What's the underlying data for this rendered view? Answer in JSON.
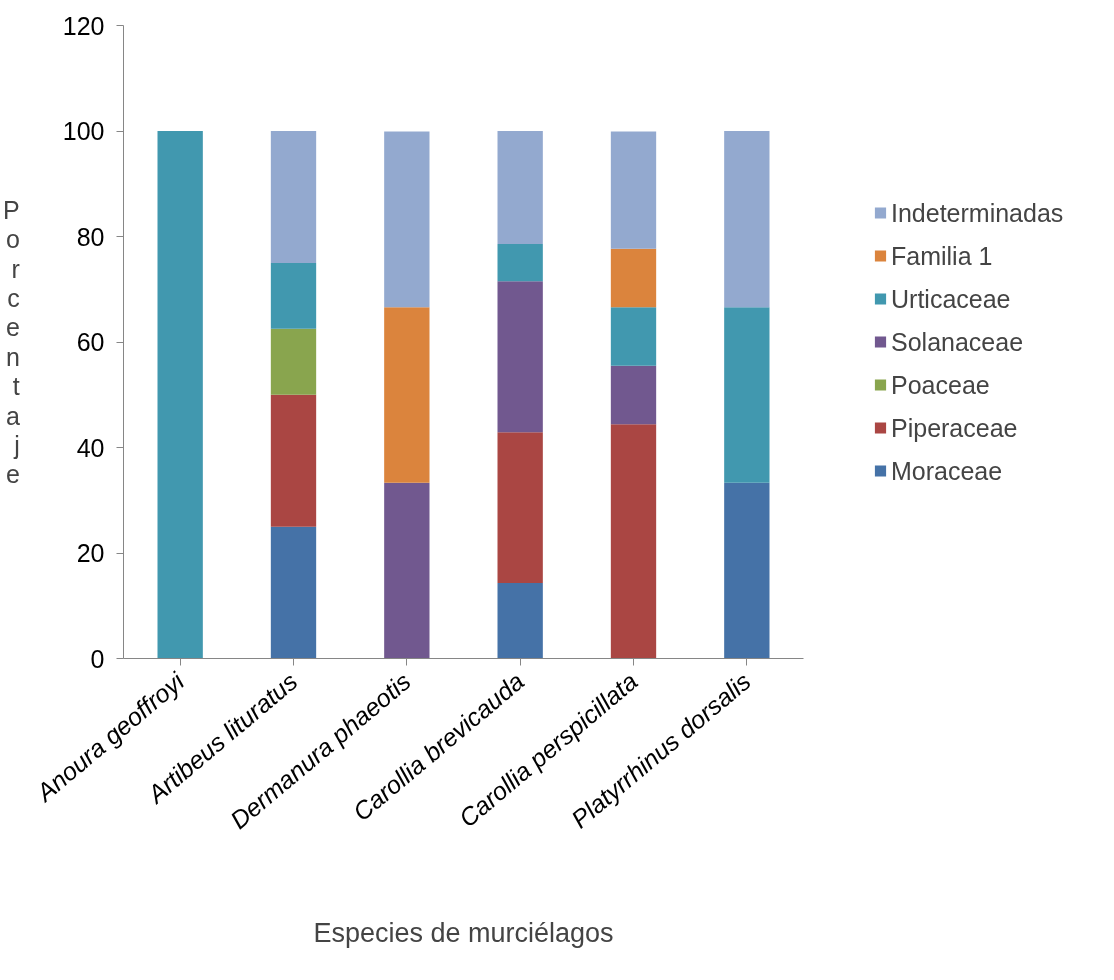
{
  "chart_data": {
    "type": "bar",
    "stacked": true,
    "xlabel": "Especies de murciélagos",
    "ylabel": "Porcentaje",
    "categories": [
      "Anoura geoffroyi",
      "Artibeus lituratus",
      "Dermanura phaeotis",
      "Carollia brevicauda",
      "Carollia perspicillata",
      "Platyrrhinus dorsalis"
    ],
    "series": [
      {
        "name": "Moraceae",
        "color": "#4572a7",
        "values": [
          0,
          25,
          0,
          14.3,
          0,
          33.3
        ]
      },
      {
        "name": "Piperaceae",
        "color": "#aa4643",
        "values": [
          0,
          25,
          0,
          28.6,
          44.4,
          0
        ]
      },
      {
        "name": "Poaceae",
        "color": "#89a54e",
        "values": [
          0,
          12.5,
          0,
          0,
          0,
          0
        ]
      },
      {
        "name": "Solanaceae",
        "color": "#71588f",
        "values": [
          0,
          0,
          33.3,
          28.6,
          11.1,
          0
        ]
      },
      {
        "name": "Urticaceae",
        "color": "#4198af",
        "values": [
          100,
          12.5,
          0,
          7.1,
          11.1,
          33.3
        ]
      },
      {
        "name": "Familia 1",
        "color": "#db843d",
        "values": [
          0,
          0,
          33.3,
          0,
          11.1,
          0
        ]
      },
      {
        "name": "Indeterminadas",
        "color": "#93a9cf",
        "values": [
          0,
          25,
          33.3,
          21.4,
          22.2,
          33.4
        ]
      }
    ],
    "ylim": [
      0,
      120
    ],
    "yticks": [
      0,
      20,
      40,
      60,
      80,
      100,
      120
    ],
    "grid": false,
    "legend": "right"
  }
}
